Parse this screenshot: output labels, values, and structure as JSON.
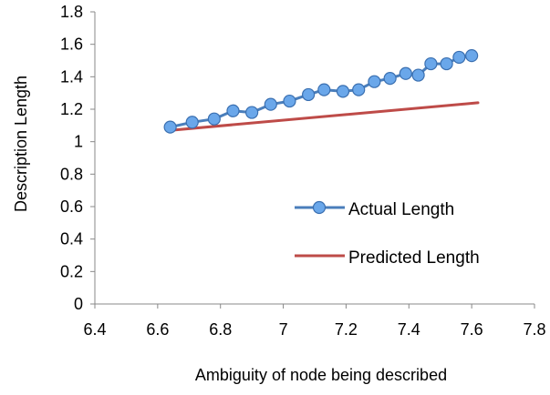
{
  "chart_data": {
    "type": "line",
    "title": "",
    "xlabel": "Ambiguity of node being described",
    "ylabel": "Description Length",
    "xlim": [
      6.4,
      7.8
    ],
    "ylim": [
      0,
      1.8
    ],
    "x_ticks": [
      6.4,
      6.6,
      6.8,
      7,
      7.2,
      7.4,
      7.6,
      7.8
    ],
    "x_tick_labels": [
      "6.4",
      "6.6",
      "6.8",
      "7",
      "7.2",
      "7.4",
      "7.6",
      "7.8"
    ],
    "y_ticks": [
      0,
      0.2,
      0.4,
      0.6,
      0.8,
      1,
      1.2,
      1.4,
      1.6,
      1.8
    ],
    "y_tick_labels": [
      "0",
      "0.2",
      "0.4",
      "0.6",
      "0.8",
      "1",
      "1.2",
      "1.4",
      "1.6",
      "1.8"
    ],
    "grid": false,
    "legend_position": "center-right",
    "series": [
      {
        "name": "Actual Length",
        "color": "#4a7ebb",
        "marker_color": "#6aa7ea",
        "marker": "circle",
        "x": [
          6.64,
          6.71,
          6.78,
          6.84,
          6.9,
          6.96,
          7.02,
          7.08,
          7.13,
          7.19,
          7.24,
          7.29,
          7.34,
          7.39,
          7.43,
          7.47,
          7.52,
          7.56,
          7.6
        ],
        "y": [
          1.09,
          1.12,
          1.14,
          1.19,
          1.18,
          1.23,
          1.25,
          1.29,
          1.32,
          1.31,
          1.32,
          1.37,
          1.39,
          1.42,
          1.41,
          1.48,
          1.48,
          1.52,
          1.53
        ]
      },
      {
        "name": "Predicted Length",
        "color": "#be4b48",
        "marker": "none",
        "x": [
          6.64,
          7.62
        ],
        "y": [
          1.07,
          1.24
        ]
      }
    ]
  }
}
